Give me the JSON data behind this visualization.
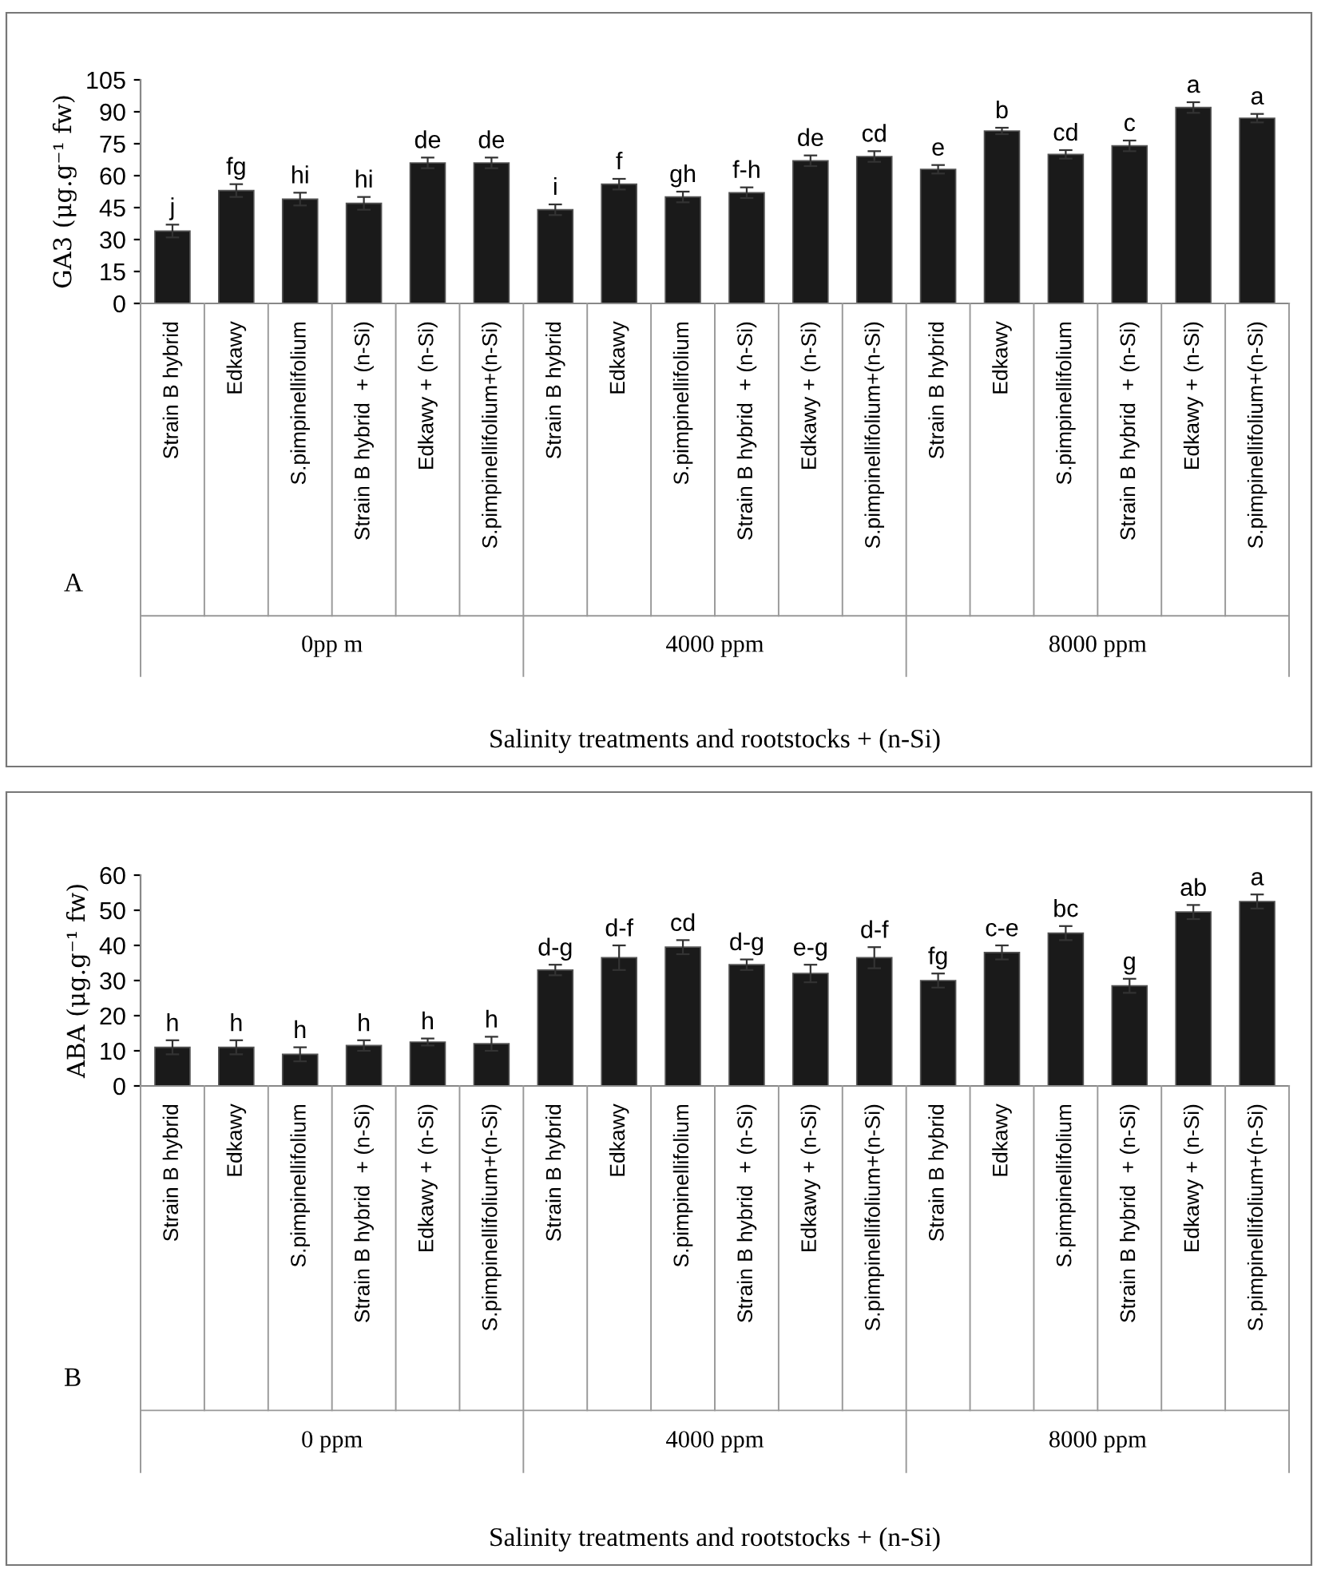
{
  "chart_data": [
    {
      "type": "bar",
      "ylabel": "GA3 (μg.g⁻¹ fw)",
      "xlabel": "Salinity treatments and rootstocks + (n-Si)",
      "categories": [
        "Strain B hybrid",
        "Edkawy",
        "S.pimpinellifolium",
        "Strain B hybrid  + (n-Si)",
        "Edkawy + (n-Si)",
        "S.pimpinellifolium+(n-Si)",
        "Strain B hybrid",
        "Edkawy",
        "S.pimpinellifolium",
        "Strain B hybrid  + (n-Si)",
        "Edkawy + (n-Si)",
        "S.pimpinellifolium+(n-Si)",
        "Strain B hybrid",
        "Edkawy",
        "S.pimpinellifolium",
        "Strain B hybrid  + (n-Si)",
        "Edkawy + (n-Si)",
        "S.pimpinellifolium+(n-Si)"
      ],
      "values": [
        34,
        53,
        49,
        47,
        66,
        66,
        44,
        56,
        50,
        52,
        67,
        69,
        63,
        81,
        70,
        74,
        92,
        87
      ],
      "errors": [
        3,
        3,
        3,
        3,
        2.5,
        2.5,
        2.5,
        2.5,
        2.5,
        2.5,
        2.5,
        2.5,
        2,
        1.5,
        2,
        2.5,
        2.5,
        2
      ],
      "value_labels": [
        "j",
        "fg",
        "hi",
        "hi",
        "de",
        "de",
        "i",
        "f",
        "gh",
        "f-h",
        "de",
        "cd",
        "e",
        "b",
        "cd",
        "c",
        "a",
        "a"
      ],
      "color": "#1a1a1a",
      "ylim": [
        0,
        105
      ],
      "yticks": [
        0,
        15,
        30,
        45,
        60,
        75,
        90,
        105
      ],
      "grid": false,
      "legend": false,
      "annotations": [
        "0pp m",
        "4000 ppm",
        "8000 ppm",
        "A"
      ]
    },
    {
      "type": "bar",
      "ylabel": "ABA (μg.g⁻¹ fw)",
      "xlabel": "Salinity treatments and rootstocks + (n-Si)",
      "categories": [
        "Strain B hybrid",
        "Edkawy",
        "S.pimpinellifolium",
        "Strain B hybrid  + (n-Si)",
        "Edkawy + (n-Si)",
        "S.pimpinellifolium+(n-Si)",
        "Strain B hybrid",
        "Edkawy",
        "S.pimpinellifolium",
        "Strain B hybrid  + (n-Si)",
        "Edkawy + (n-Si)",
        "S.pimpinellifolium+(n-Si)",
        "Strain B hybrid",
        "Edkawy",
        "S.pimpinellifolium",
        "Strain B hybrid  + (n-Si)",
        "Edkawy + (n-Si)",
        "S.pimpinellifolium+(n-Si)"
      ],
      "values": [
        11,
        11,
        9,
        11.5,
        12.5,
        12,
        33,
        36.5,
        39.5,
        34.5,
        32,
        36.5,
        30,
        38,
        43.5,
        28.5,
        49.5,
        52.5
      ],
      "errors": [
        2,
        2,
        2,
        1.5,
        1,
        2,
        1.5,
        3.5,
        2,
        1.5,
        2.5,
        3,
        2,
        2,
        2,
        2,
        2,
        2
      ],
      "value_labels": [
        "h",
        "h",
        "h",
        "h",
        "h",
        "h",
        "d-g",
        "d-f",
        "cd",
        "d-g",
        "e-g",
        "d-f",
        "fg",
        "c-e",
        "bc",
        "g",
        "ab",
        "a"
      ],
      "color": "#1a1a1a",
      "ylim": [
        0,
        60
      ],
      "yticks": [
        0,
        10,
        20,
        30,
        40,
        50,
        60
      ],
      "grid": false,
      "legend": false,
      "annotations": [
        "0 ppm",
        "4000 ppm",
        "8000 ppm",
        "B"
      ]
    }
  ]
}
